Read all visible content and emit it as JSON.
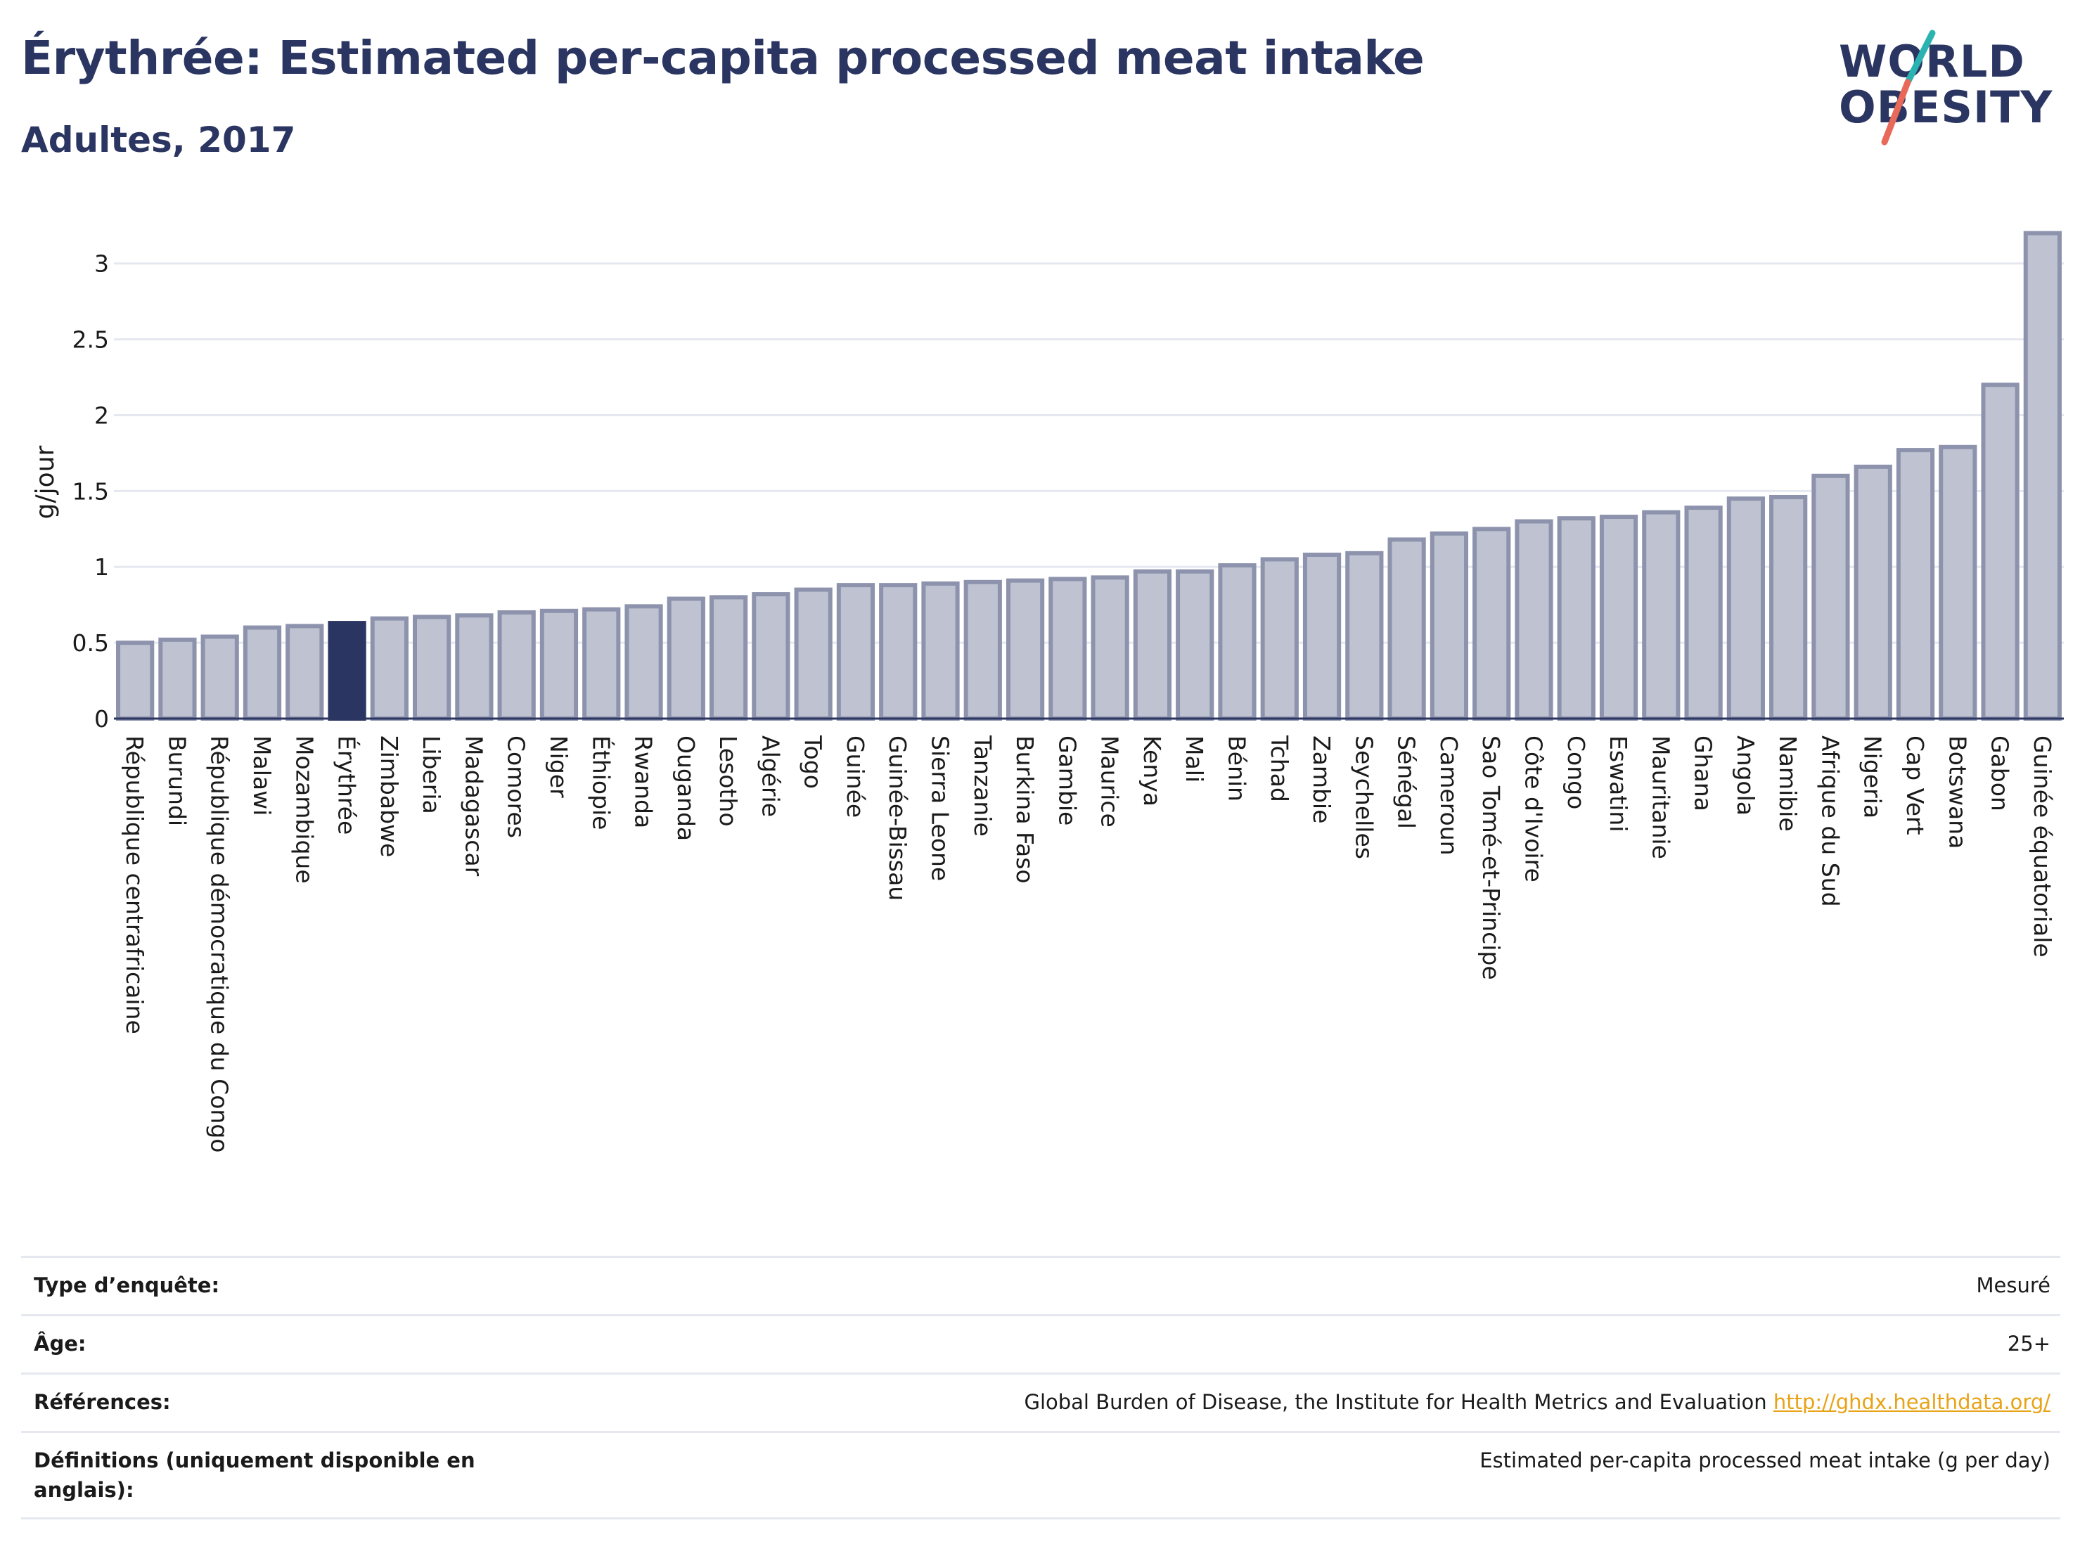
{
  "header": {
    "title": "Érythrée: Estimated per-capita processed meat intake",
    "subtitle": "Adultes, 2017"
  },
  "logo": {
    "line1": "WORLD",
    "line2": "OBESITY",
    "colors": {
      "text": "#2b3561",
      "slash_top": "#2ab3b1",
      "slash_bottom": "#e8685a"
    }
  },
  "colors": {
    "bar_fill": "#bec2d1",
    "bar_stroke": "#8d93ad",
    "highlight_fill": "#2b3561",
    "grid": "#e6e8f0",
    "axis": "#2b3561",
    "link": "#e8a317"
  },
  "chart_data": {
    "type": "bar",
    "title": "",
    "xlabel": "",
    "ylabel": "g/jour",
    "ylim": [
      0,
      3.3
    ],
    "yticks": [
      0,
      0.5,
      1,
      1.5,
      2,
      2.5,
      3
    ],
    "ytick_labels": [
      "0",
      "0.5",
      "1",
      "1.5",
      "2",
      "2.5",
      "3"
    ],
    "grid": true,
    "highlight": "Érythrée",
    "categories": [
      "République centrafricaine",
      "Burundi",
      "République démocratique du Congo",
      "Malawi",
      "Mozambique",
      "Érythrée",
      "Zimbabwe",
      "Liberia",
      "Madagascar",
      "Comores",
      "Niger",
      "Éthiopie",
      "Rwanda",
      "Ouganda",
      "Lesotho",
      "Algérie",
      "Togo",
      "Guinée",
      "Guinée-Bissau",
      "Sierra Leone",
      "Tanzanie",
      "Burkina Faso",
      "Gambie",
      "Maurice",
      "Kenya",
      "Mali",
      "Bénin",
      "Tchad",
      "Zambie",
      "Seychelles",
      "Sénégal",
      "Cameroun",
      "Sao Tomé-et-Principe",
      "Côte d'Ivoire",
      "Congo",
      "Eswatini",
      "Mauritanie",
      "Ghana",
      "Angola",
      "Namibie",
      "Afrique du Sud",
      "Nigeria",
      "Cap Vert",
      "Botswana",
      "Gabon",
      "Guinée équatoriale"
    ],
    "values": [
      0.5,
      0.52,
      0.54,
      0.6,
      0.61,
      0.63,
      0.66,
      0.67,
      0.68,
      0.7,
      0.71,
      0.72,
      0.74,
      0.79,
      0.8,
      0.82,
      0.85,
      0.88,
      0.88,
      0.89,
      0.9,
      0.91,
      0.92,
      0.93,
      0.97,
      0.97,
      1.01,
      1.05,
      1.08,
      1.09,
      1.18,
      1.22,
      1.25,
      1.3,
      1.32,
      1.33,
      1.36,
      1.39,
      1.45,
      1.46,
      1.6,
      1.66,
      1.77,
      1.79,
      2.2,
      3.2
    ]
  },
  "table": {
    "rows": [
      {
        "label": "Type d’enquête:",
        "value": "Mesuré"
      },
      {
        "label": "Âge:",
        "value": "25+"
      },
      {
        "label": "Références:",
        "value": "Global Burden of Disease, the Institute for Health Metrics and Evaluation ",
        "link": "http://ghdx.healthdata.org/"
      },
      {
        "label": "Définitions (uniquement disponible en anglais):",
        "value": "Estimated per-capita processed meat intake (g per day)"
      }
    ]
  }
}
